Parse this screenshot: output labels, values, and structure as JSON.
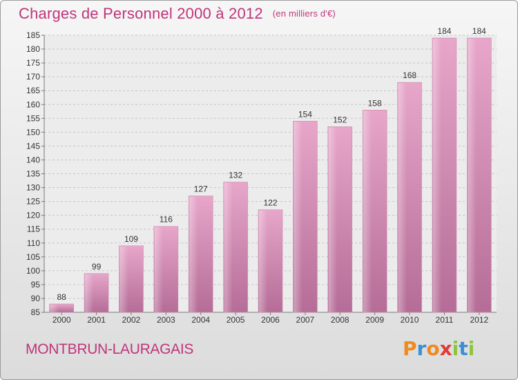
{
  "chart_data": {
    "type": "bar",
    "title": "Charges de Personnel 2000 à 2012",
    "subtitle": "(en milliers d'€)",
    "categories": [
      "2000",
      "2001",
      "2002",
      "2003",
      "2004",
      "2005",
      "2006",
      "2007",
      "2008",
      "2009",
      "2010",
      "2011",
      "2012"
    ],
    "values": [
      88,
      99,
      109,
      116,
      127,
      132,
      122,
      154,
      152,
      158,
      168,
      184,
      184
    ],
    "ylim": [
      85,
      185
    ],
    "yticks": [
      85,
      90,
      95,
      100,
      105,
      110,
      115,
      120,
      125,
      130,
      135,
      140,
      145,
      150,
      155,
      160,
      165,
      170,
      175,
      180,
      185
    ],
    "grid": true,
    "bar_color": "#d98ab5"
  },
  "footer": {
    "place": "MONTBRUN-LAURAGAIS"
  },
  "logo": {
    "letters": [
      {
        "ch": "P",
        "color": "#f08a1d"
      },
      {
        "ch": "r",
        "color": "#3b8fd4"
      },
      {
        "ch": "o",
        "color": "#f08a1d"
      },
      {
        "ch": "x",
        "color": "#e23a3a"
      },
      {
        "ch": "i",
        "color": "#8cc63f"
      },
      {
        "ch": "t",
        "color": "#3b8fd4"
      },
      {
        "ch": "i",
        "color": "#8cc63f"
      }
    ]
  }
}
